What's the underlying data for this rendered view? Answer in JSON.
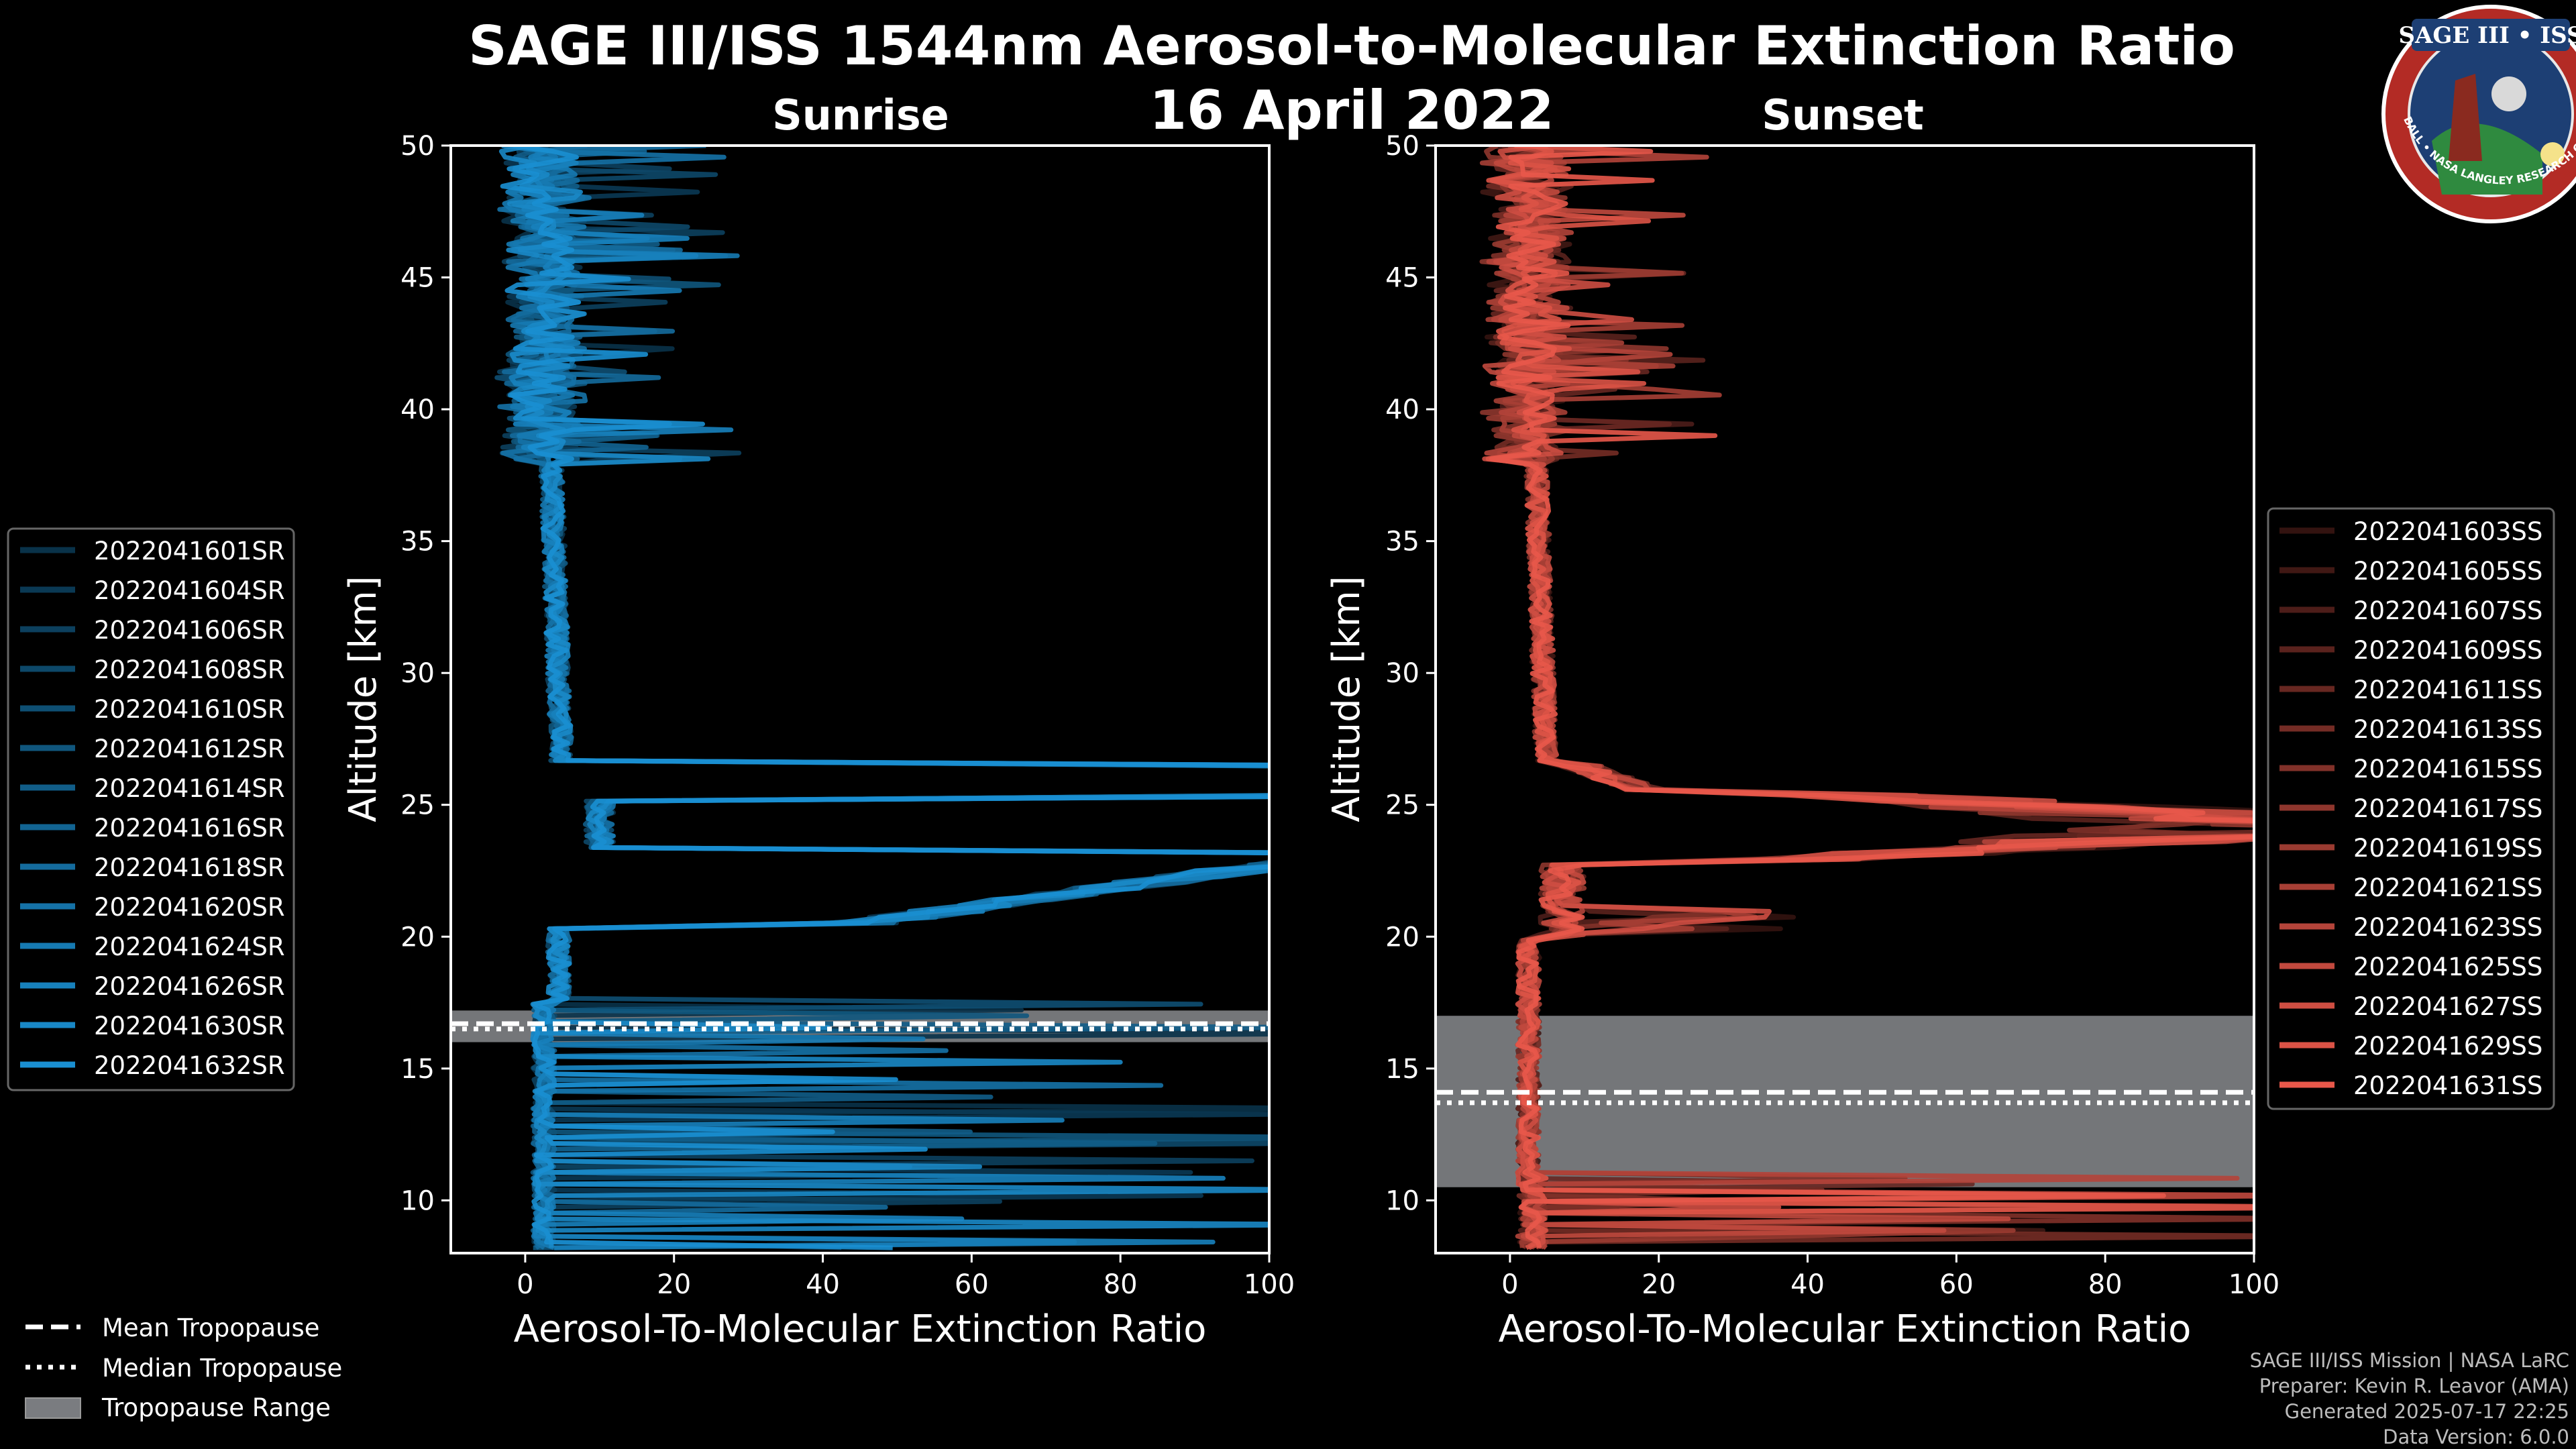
{
  "header": {
    "title_line1": "SAGE III/ISS 1544nm Aerosol-to-Molecular Extinction Ratio",
    "date": "16 April 2022"
  },
  "badge": {
    "name": "SAGE III • ISS",
    "ring_text": "BALL • NASA LANGLEY RESEARCH CENTER • TAS-I • ESA"
  },
  "colors": {
    "background": "#000000",
    "sunrise": "#1a8fd1",
    "sunset": "#e8584a",
    "tropo_range": "#7a7c80"
  },
  "chart_data": [
    {
      "type": "line",
      "panel_title": "Sunrise",
      "xlabel": "Aerosol-To-Molecular Extinction Ratio",
      "ylabel": "Altitude [km]",
      "xlim": [
        -10,
        100
      ],
      "ylim": [
        8,
        50
      ],
      "xticks": [
        "0",
        "20",
        "40",
        "60",
        "80",
        "100"
      ],
      "yticks": [
        "10",
        "15",
        "20",
        "25",
        "30",
        "35",
        "40",
        "45",
        "50"
      ],
      "series_names": [
        "2022041601SR",
        "2022041604SR",
        "2022041606SR",
        "2022041608SR",
        "2022041610SR",
        "2022041612SR",
        "2022041614SR",
        "2022041616SR",
        "2022041618SR",
        "2022041620SR",
        "2022041624SR",
        "2022041626SR",
        "2022041630SR",
        "2022041632SR"
      ],
      "profile_shape": {
        "above_26km_ratio": [
          1,
          6
        ],
        "peak_layer_km": [
          25.3,
          26.5
        ],
        "secondary_layer_km": [
          20,
          23
        ],
        "secondary_layer_max_ratio": 100,
        "cloud_returns_km_below": 17.5
      },
      "tropopause": {
        "mean_km": 16.7,
        "median_km": 16.5,
        "range_km": [
          16.0,
          17.2
        ]
      }
    },
    {
      "type": "line",
      "panel_title": "Sunset",
      "xlabel": "Aerosol-To-Molecular Extinction Ratio",
      "ylabel": "Altitude [km]",
      "xlim": [
        -10,
        100
      ],
      "ylim": [
        8,
        50
      ],
      "xticks": [
        "0",
        "20",
        "40",
        "60",
        "80",
        "100"
      ],
      "yticks": [
        "10",
        "15",
        "20",
        "25",
        "30",
        "35",
        "40",
        "45",
        "50"
      ],
      "series_names": [
        "2022041603SS",
        "2022041605SS",
        "2022041607SS",
        "2022041609SS",
        "2022041611SS",
        "2022041613SS",
        "2022041615SS",
        "2022041617SS",
        "2022041619SS",
        "2022041621SS",
        "2022041623SS",
        "2022041625SS",
        "2022041627SS",
        "2022041629SS",
        "2022041631SS"
      ],
      "profile_shape": {
        "above_26km_ratio": [
          1,
          8
        ],
        "peak_layer_km": [
          22.5,
          25.5
        ],
        "peak_max_ratio": 100,
        "secondary_bump_km": 20.6,
        "secondary_bump_ratio": 37,
        "cloud_returns_km_below": 11
      },
      "tropopause": {
        "mean_km": 14.1,
        "median_km": 13.7,
        "range_km": [
          10.5,
          17.0
        ]
      }
    }
  ],
  "legend_tropopause": {
    "mean": "Mean Tropopause",
    "median": "Median Tropopause",
    "range": "Tropopause Range"
  },
  "credits": {
    "line1": "SAGE III/ISS Mission | NASA LaRC",
    "line2": "Preparer: Kevin R. Leavor (AMA)",
    "line3": "Generated 2025-07-17 22:25",
    "line4": "Data Version: 6.0.0"
  }
}
